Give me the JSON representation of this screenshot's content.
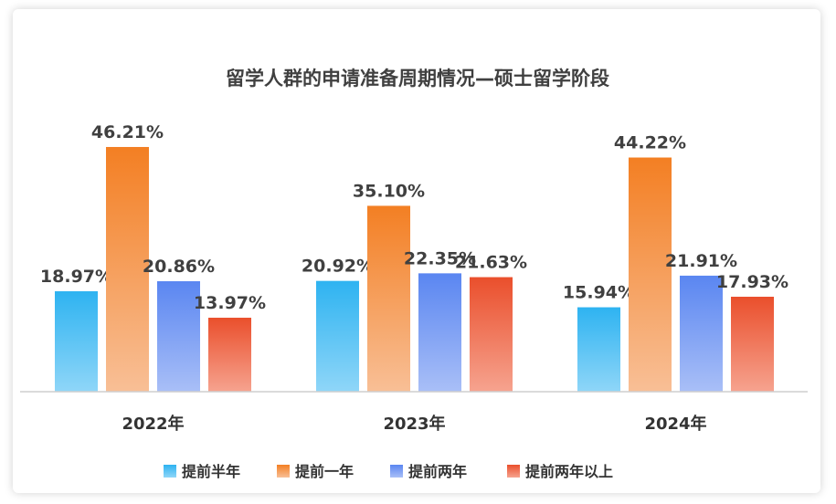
{
  "chart_data": {
    "type": "bar",
    "title": "留学人群的申请准备周期情况—硕士留学阶段",
    "categories": [
      "2022年",
      "2023年",
      "2024年"
    ],
    "series": [
      {
        "name": "提前半年",
        "values": [
          18.97,
          20.92,
          15.94
        ],
        "labels": [
          "18.97%",
          "20.92%",
          "15.94%"
        ],
        "color_top": "#2eb3f1",
        "color_bottom": "#8fd6f8"
      },
      {
        "name": "提前一年",
        "values": [
          46.21,
          35.1,
          44.22
        ],
        "labels": [
          "46.21%",
          "35.10%",
          "44.22%"
        ],
        "color_top": "#f37f23",
        "color_bottom": "#f8bf96"
      },
      {
        "name": "提前两年",
        "values": [
          20.86,
          22.35,
          21.91
        ],
        "labels": [
          "20.86%",
          "22.35%",
          "21.91%"
        ],
        "color_top": "#5a86f1",
        "color_bottom": "#a9bff7"
      },
      {
        "name": "提前两年以上",
        "values": [
          13.97,
          21.63,
          17.93
        ],
        "labels": [
          "13.97%",
          "21.63%",
          "17.93%"
        ],
        "color_top": "#ea4f2c",
        "color_bottom": "#f6a38f"
      }
    ],
    "xlabel": "",
    "ylabel": "",
    "ylim": [
      0,
      50
    ],
    "grid": false,
    "legend": "bottom"
  }
}
